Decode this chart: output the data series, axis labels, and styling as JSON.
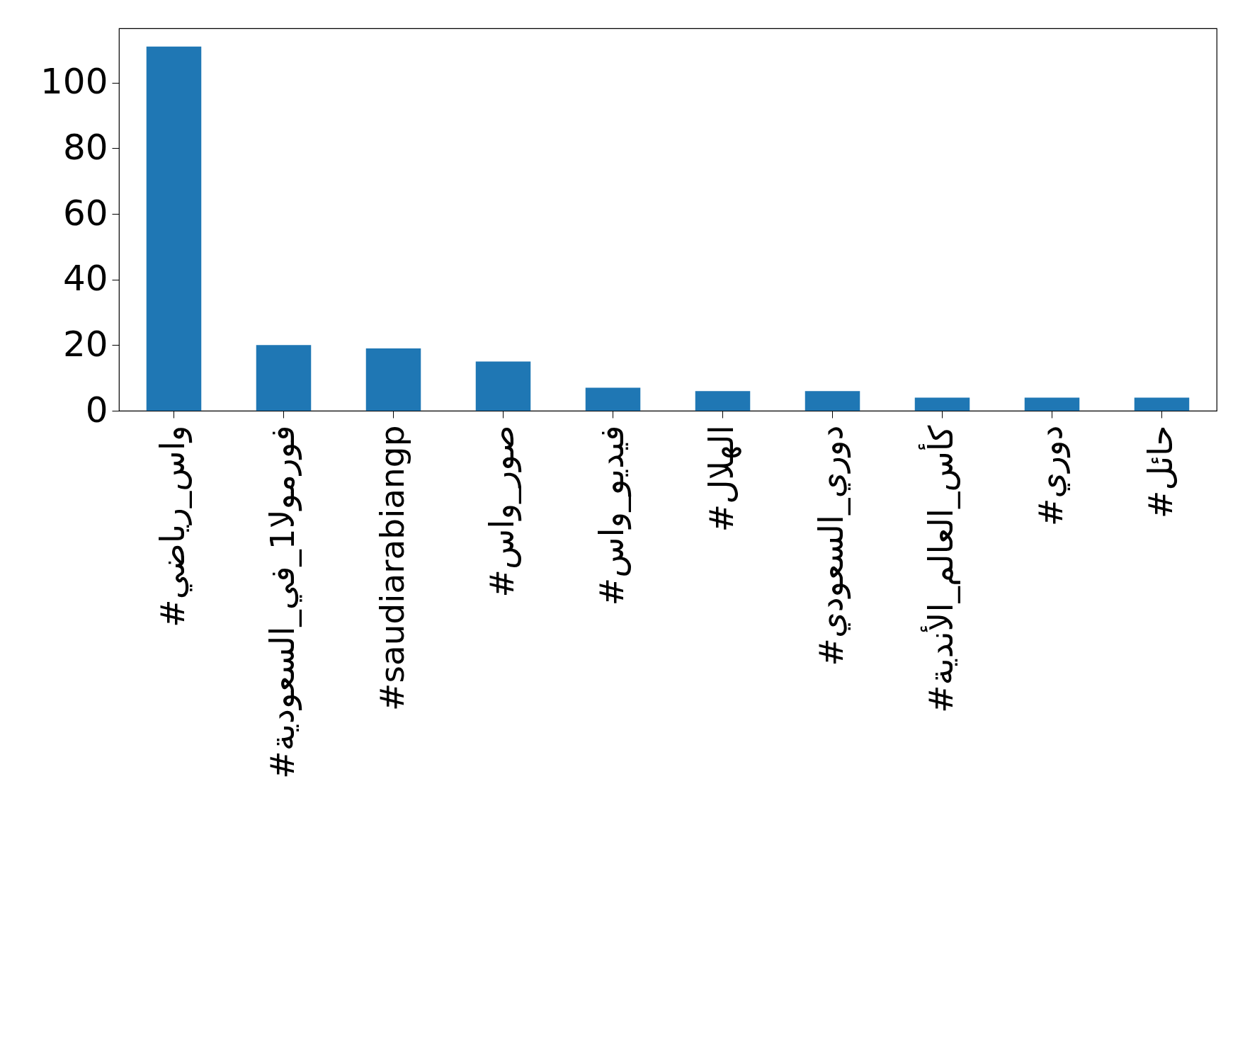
{
  "chart_data": {
    "type": "bar",
    "categories": [
      "#واس_رياضي",
      "#فورمولا1_في_السعودية",
      "#saudiarabiangp",
      "#صور_واس",
      "#فيديو_واس",
      "#الهلال",
      "#دوري_السعودي",
      "#كأس_العالم_الأندية",
      "#دوري",
      "#حائل"
    ],
    "values": [
      111,
      20,
      19,
      15,
      7,
      6,
      6,
      4,
      4,
      4
    ],
    "color": "#1f77b4",
    "ylim": [
      0,
      116.55
    ],
    "yticks": [
      0,
      20,
      40,
      60,
      80,
      100
    ],
    "grid": false
  }
}
